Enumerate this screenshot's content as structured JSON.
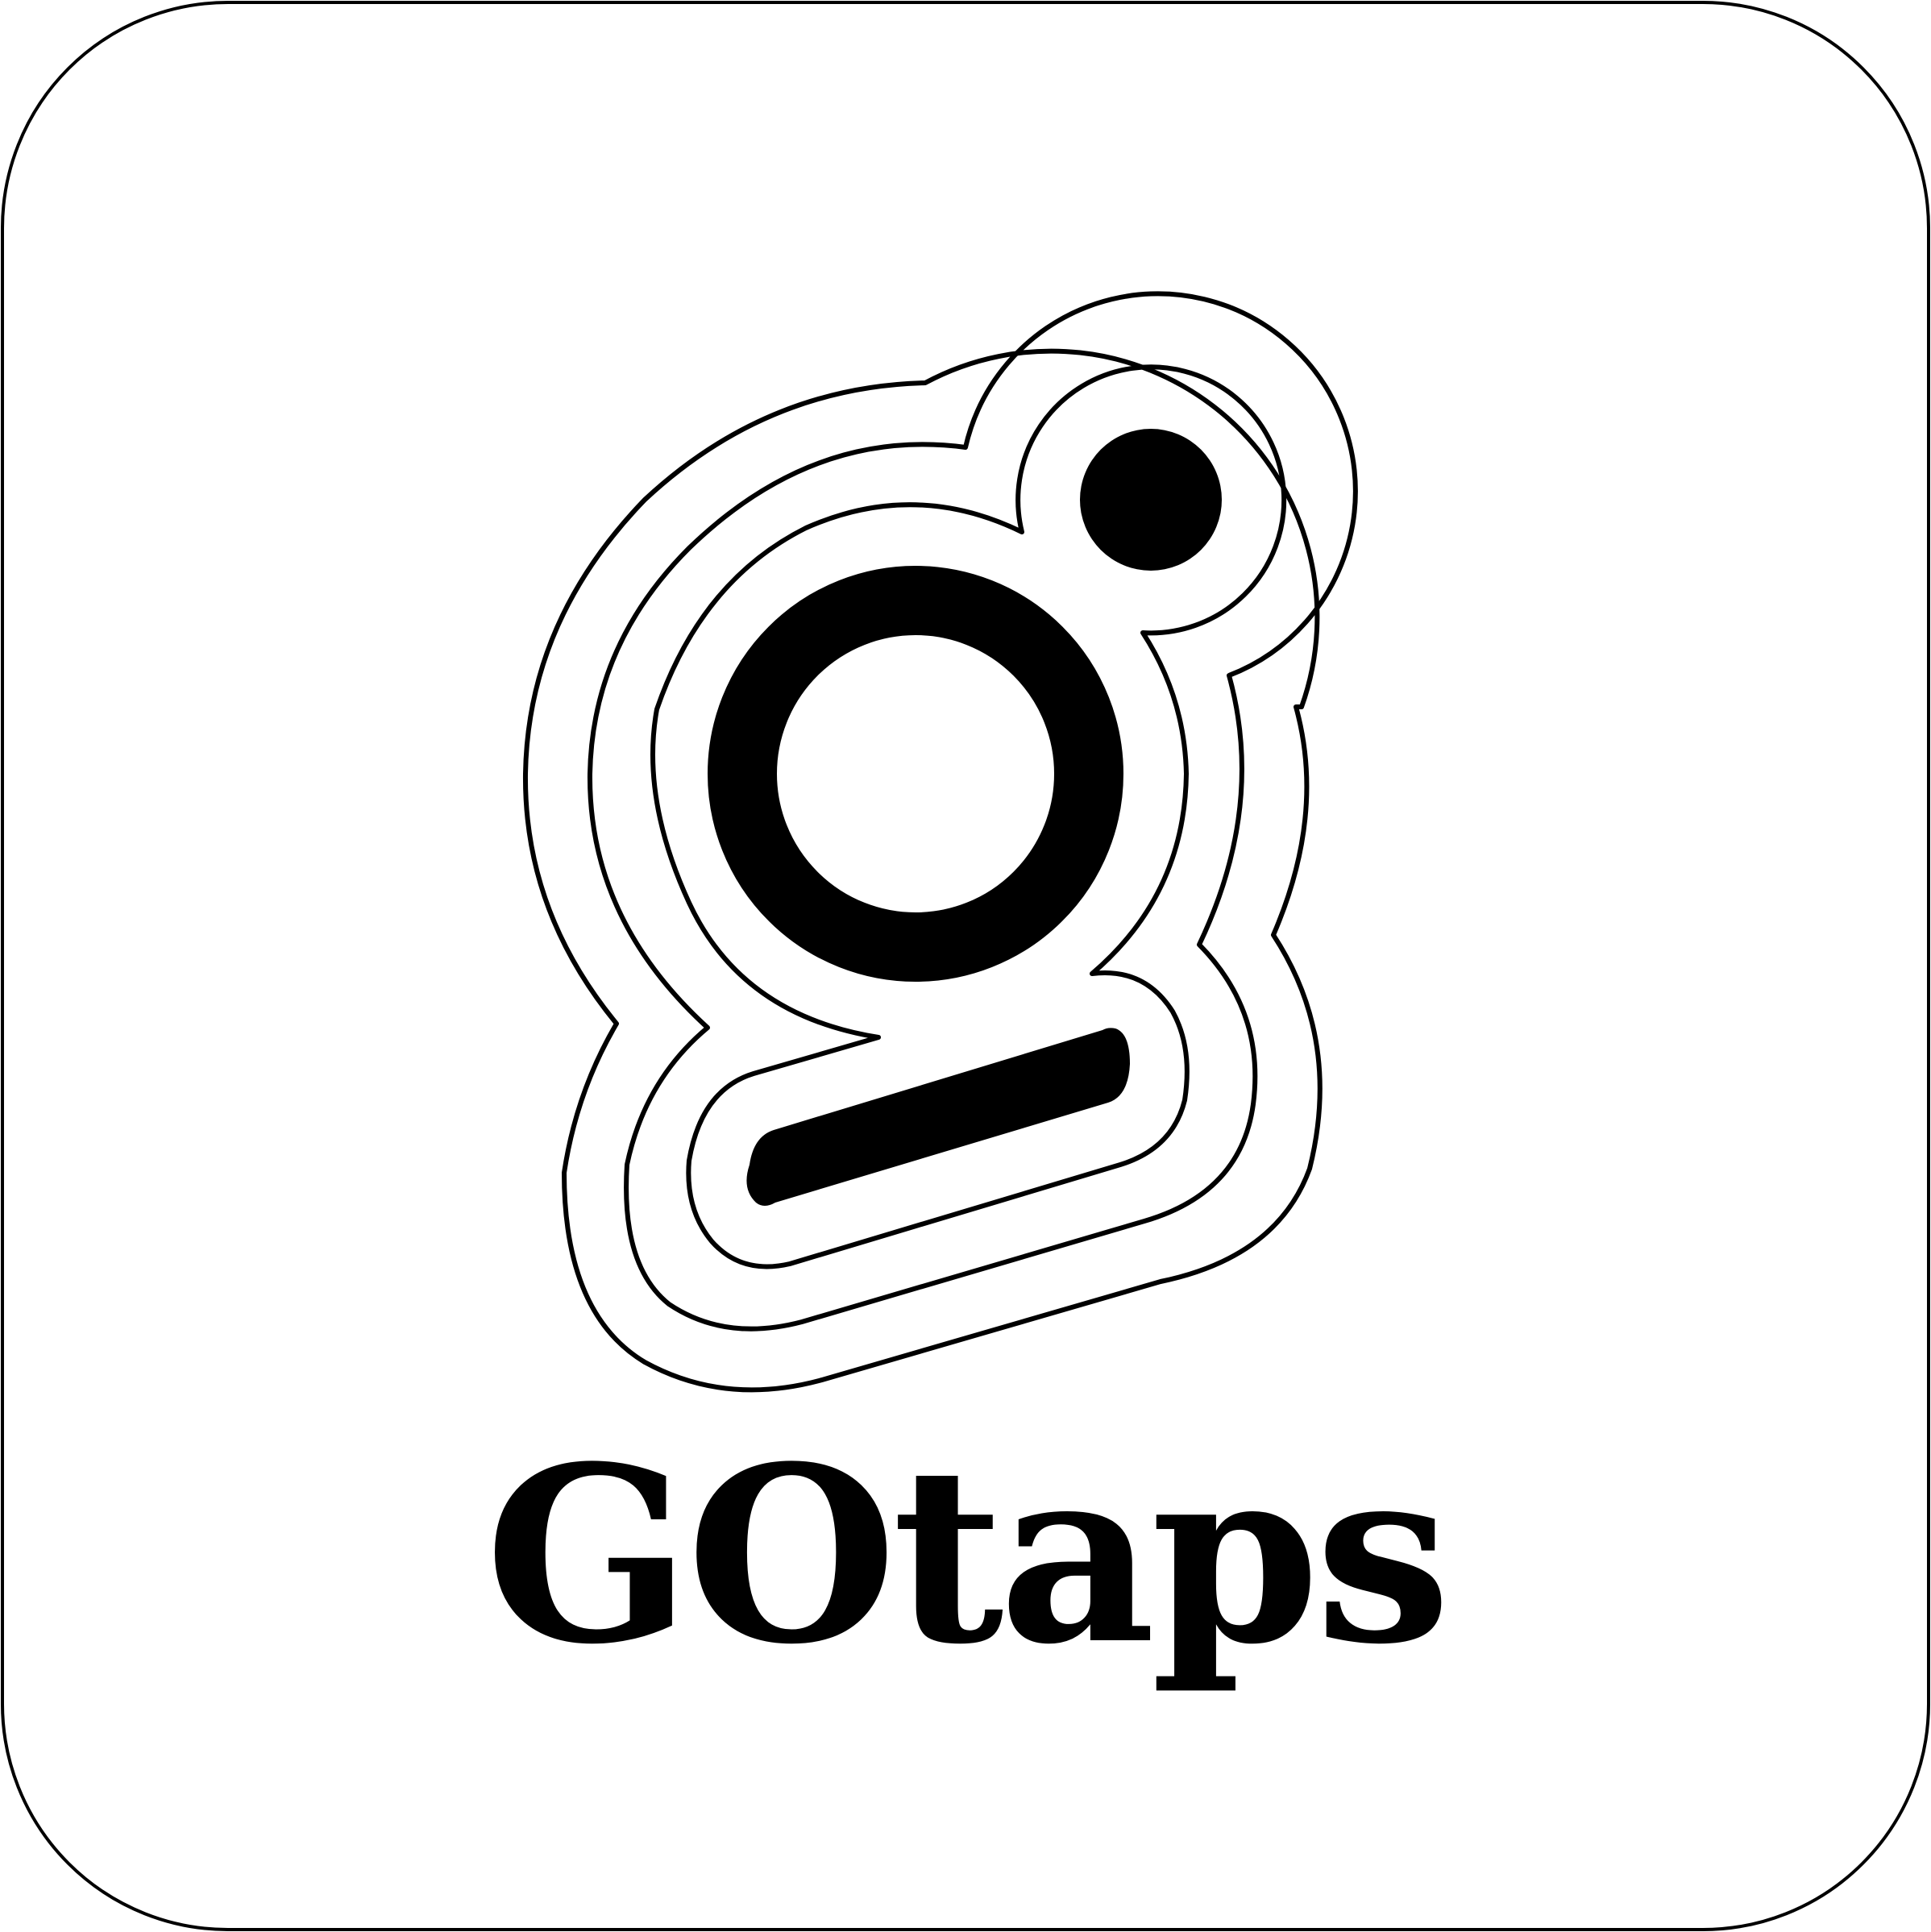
{
  "brand": {
    "name": "GOtaps",
    "icon": "g-monogram-logo-icon"
  },
  "colors": {
    "background": "#ffffff",
    "ink": "#000000"
  }
}
